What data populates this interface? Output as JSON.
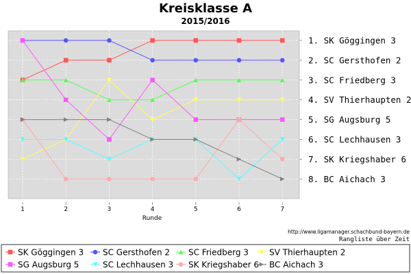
{
  "chart_data": {
    "type": "line",
    "title": "Kreisklasse A",
    "subtitle": "2015/2016",
    "xlabel": "Runde",
    "ylabel": "",
    "x": [
      1,
      2,
      3,
      4,
      5,
      6,
      7
    ],
    "ylim": [
      1,
      8
    ],
    "y_inverted": true,
    "grid": true,
    "legend_position": "bottom",
    "rank_labels": [
      "1. SK Göggingen 3",
      "2. SC Gersthofen 2",
      "3. SC Friedberg 3",
      "4. SV Thierhaupten 2",
      "5. SG Augsburg 5",
      "6. SC Lechhausen 3",
      "7. SK Kriegshaber 6",
      "8. BC Aichach 3"
    ],
    "series": [
      {
        "name": "SK Göggingen 3",
        "color": "#ff5555",
        "marker": "square",
        "values": [
          3,
          2,
          2,
          1,
          1,
          1,
          1
        ]
      },
      {
        "name": "SC Gersthofen 2",
        "color": "#5555ff",
        "marker": "circle",
        "values": [
          1,
          1,
          1,
          2,
          2,
          2,
          2
        ]
      },
      {
        "name": "SC Friedberg 3",
        "color": "#55ff55",
        "marker": "triangle-up",
        "values": [
          3,
          3,
          4,
          4,
          3,
          3,
          3
        ]
      },
      {
        "name": "SV Thierhaupten 2",
        "color": "#ffff55",
        "marker": "triangle-down",
        "values": [
          7,
          6,
          3,
          5,
          4,
          4,
          4
        ]
      },
      {
        "name": "SG Augsburg 5",
        "color": "#ff55ff",
        "marker": "square",
        "values": [
          1,
          4,
          6,
          3,
          5,
          5,
          5
        ]
      },
      {
        "name": "SC Lechhausen 3",
        "color": "#55ffff",
        "marker": "triangle-down",
        "values": [
          6,
          6,
          7,
          6,
          6,
          8,
          6
        ]
      },
      {
        "name": "SK Kriegshaber 6",
        "color": "#ffaaaa",
        "marker": "circle",
        "values": [
          5,
          8,
          8,
          8,
          8,
          5,
          7
        ]
      },
      {
        "name": "BC Aichach 3",
        "color": "#808080",
        "marker": "triangle-right",
        "values": [
          5,
          5,
          5,
          6,
          6,
          7,
          8
        ]
      }
    ]
  },
  "credit": "http://www.ligamanager.schachbund-bayern.de",
  "chart_note": "Rangliste über Zeit"
}
